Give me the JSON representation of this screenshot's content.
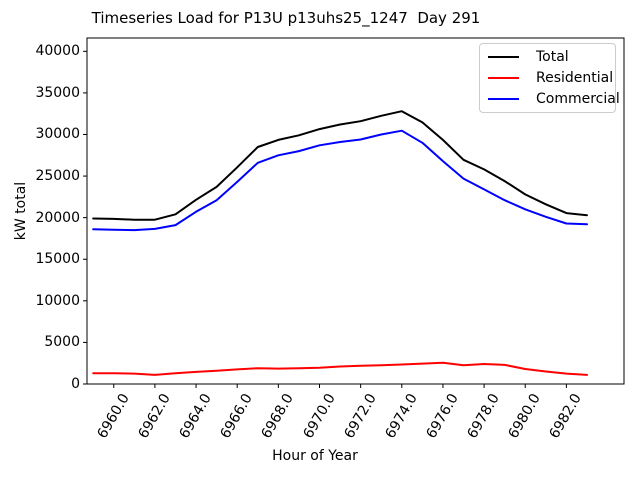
{
  "title": "Timeseries Load for P13U p13uhs25_1247  Day 291",
  "chart_data": {
    "type": "line",
    "title": "Timeseries Load for P13U p13uhs25_1247  Day 291",
    "xlabel": "Hour of Year",
    "ylabel": "kW total",
    "grid": false,
    "x": [
      6959,
      6960,
      6961,
      6962,
      6963,
      6964,
      6965,
      6966,
      6967,
      6968,
      6969,
      6970,
      6971,
      6972,
      6973,
      6974,
      6975,
      6976,
      6977,
      6978,
      6979,
      6980,
      6981,
      6982,
      6983
    ],
    "series": [
      {
        "name": "Total",
        "color": "#000000",
        "values": [
          19900,
          19850,
          19750,
          19750,
          20400,
          22150,
          23700,
          26050,
          28500,
          29350,
          29900,
          30650,
          31200,
          31600,
          32250,
          32800,
          31450,
          29350,
          26950,
          25800,
          24400,
          22800,
          21600,
          20550,
          20300
        ]
      },
      {
        "name": "Residential",
        "color": "#ff0000",
        "values": [
          1300,
          1300,
          1250,
          1100,
          1300,
          1450,
          1600,
          1750,
          1900,
          1850,
          1900,
          1950,
          2100,
          2200,
          2250,
          2350,
          2450,
          2550,
          2250,
          2400,
          2300,
          1800,
          1500,
          1250,
          1100
        ]
      },
      {
        "name": "Commercial",
        "color": "#0000ff",
        "values": [
          18600,
          18550,
          18500,
          18650,
          19100,
          20700,
          22100,
          24300,
          26600,
          27500,
          28000,
          28700,
          29100,
          29400,
          30000,
          30450,
          29000,
          26800,
          24700,
          23400,
          22100,
          21000,
          20100,
          19300,
          19200
        ]
      }
    ],
    "xlim": [
      6958.7,
      6984.8
    ],
    "ylim": [
      0,
      41600
    ],
    "xticks": [
      6960,
      6962,
      6964,
      6966,
      6968,
      6970,
      6972,
      6974,
      6976,
      6978,
      6980,
      6982
    ],
    "xtick_labels": [
      "6960.0",
      "6962.0",
      "6964.0",
      "6966.0",
      "6968.0",
      "6970.0",
      "6972.0",
      "6974.0",
      "6976.0",
      "6978.0",
      "6980.0",
      "6982.0"
    ],
    "yticks": [
      0,
      5000,
      10000,
      15000,
      20000,
      25000,
      30000,
      35000,
      40000
    ],
    "ytick_labels": [
      "0",
      "5000",
      "10000",
      "15000",
      "20000",
      "25000",
      "30000",
      "35000",
      "40000"
    ],
    "legend": {
      "position": "upper right",
      "entries": [
        "Total",
        "Residential",
        "Commercial"
      ]
    },
    "axis_color": "#000000",
    "background_color": "#ffffff"
  }
}
